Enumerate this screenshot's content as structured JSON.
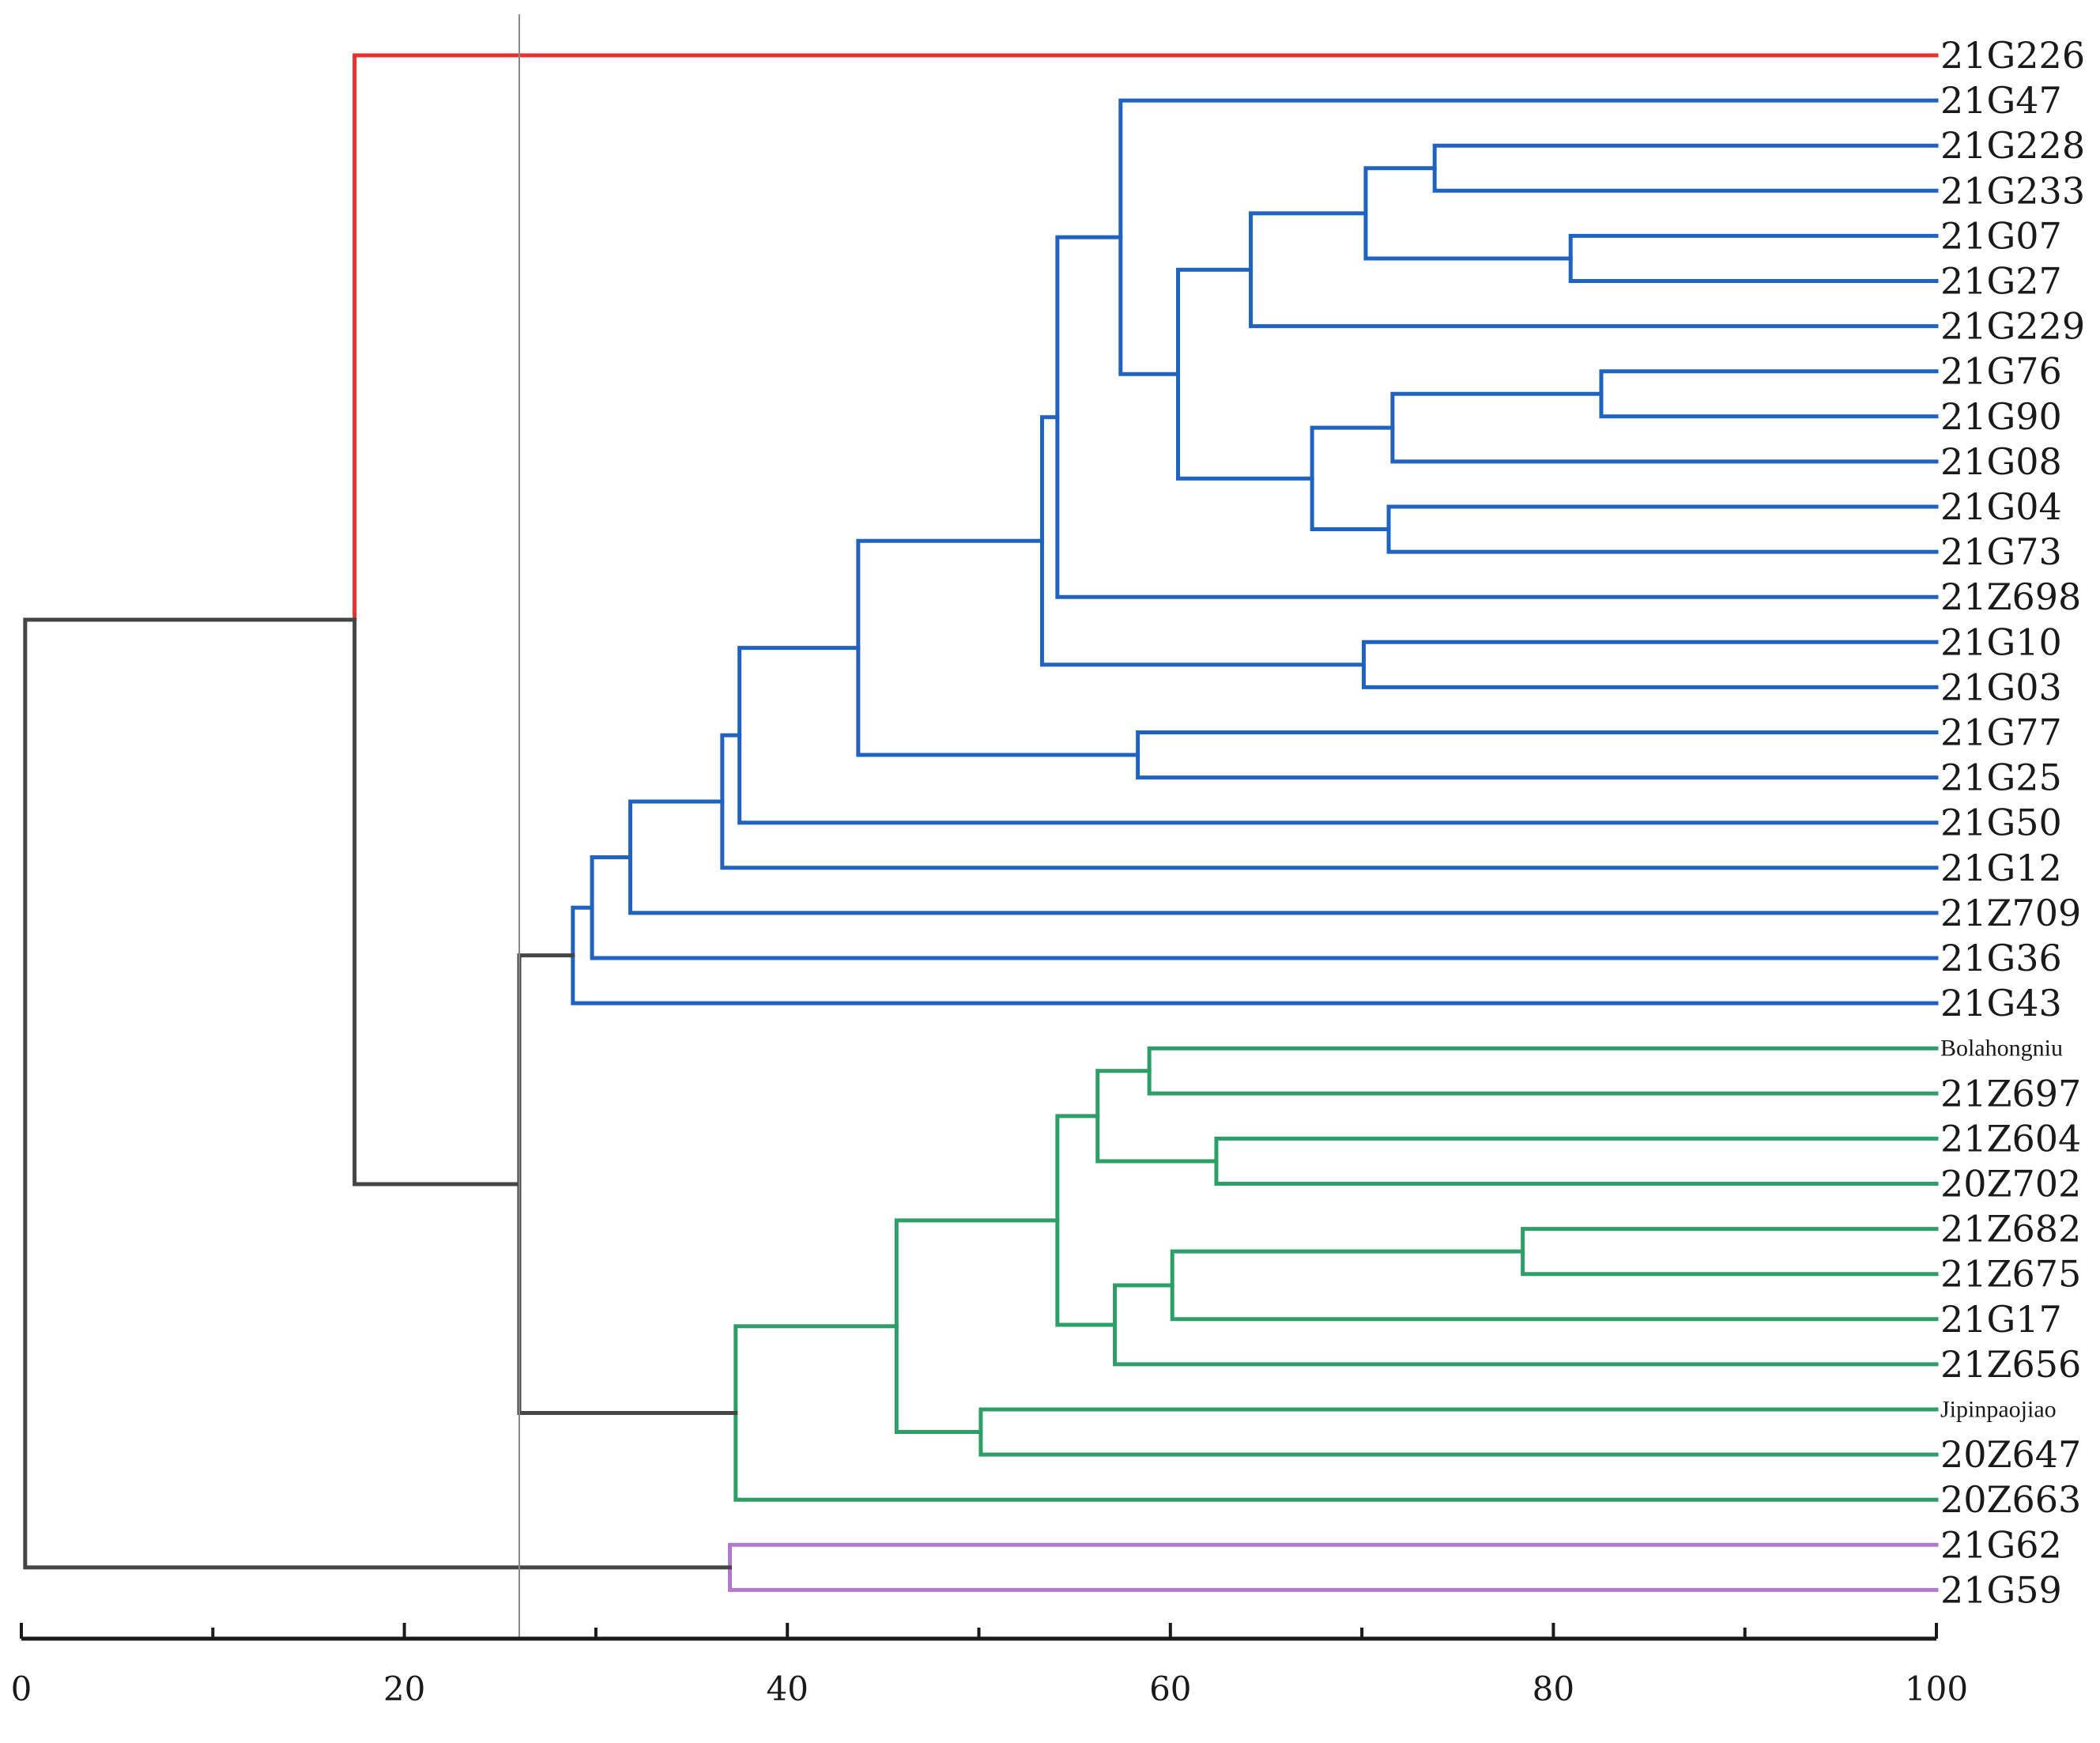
{
  "colors": {
    "red": "#e83030",
    "blue": "#1f62c0",
    "green": "#2e9e68",
    "purple": "#b478d2",
    "gray": "#454545",
    "cutoff_line": "#888888"
  },
  "chart_data": {
    "type": "dendrogram",
    "orientation": "horizontal",
    "x_range": [
      0,
      100
    ],
    "x_ticks_major": [
      0,
      20,
      40,
      60,
      80,
      100
    ],
    "x_ticks_minor": [
      10,
      30,
      50,
      70,
      90
    ],
    "x_tick_labels": [
      "0",
      "20",
      "40",
      "60",
      "80",
      "100"
    ],
    "cutoff_value": 26,
    "leaves": [
      "21G226",
      "21G47",
      "21G228",
      "21G233",
      "21G07",
      "21G27",
      "21G229",
      "21G76",
      "21G90",
      "21G08",
      "21G04",
      "21G73",
      "21Z698",
      "21G10",
      "21G03",
      "21G77",
      "21G25",
      "21G50",
      "21G12",
      "21Z709",
      "21G36",
      "21G43",
      "Bolahongniu",
      "21Z697",
      "21Z604",
      "20Z702",
      "21Z682",
      "21Z675",
      "21G17",
      "21Z656",
      "Jipinpaojiao",
      "20Z647",
      "20Z663",
      "21G62",
      "21G59"
    ],
    "small_labels": [
      "Bolahongniu",
      "Jipinpaojiao"
    ],
    "merges": [
      {
        "id": "b1",
        "a": "21G228",
        "b": "21G233",
        "value": 73.8,
        "color": "blue"
      },
      {
        "id": "b2",
        "a": "21G07",
        "b": "21G27",
        "value": 80.9,
        "color": "blue"
      },
      {
        "id": "b3",
        "a": "b1",
        "b": "b2",
        "value": 70.2,
        "color": "blue"
      },
      {
        "id": "b4",
        "a": "b3",
        "b": "21G229",
        "value": 64.2,
        "color": "blue"
      },
      {
        "id": "b5",
        "a": "21G76",
        "b": "21G90",
        "value": 82.5,
        "color": "blue"
      },
      {
        "id": "b6",
        "a": "b5",
        "b": "21G08",
        "value": 71.6,
        "color": "blue"
      },
      {
        "id": "b7",
        "a": "21G04",
        "b": "21G73",
        "value": 71.4,
        "color": "blue"
      },
      {
        "id": "b8",
        "a": "b6",
        "b": "b7",
        "value": 67.4,
        "color": "blue"
      },
      {
        "id": "b9",
        "a": "b4",
        "b": "b8",
        "value": 60.4,
        "color": "blue"
      },
      {
        "id": "b10",
        "a": "21G47",
        "b": "b9",
        "value": 57.4,
        "color": "blue"
      },
      {
        "id": "b11",
        "a": "b10",
        "b": "21Z698",
        "value": 54.1,
        "color": "blue"
      },
      {
        "id": "b12",
        "a": "21G10",
        "b": "21G03",
        "value": 70.1,
        "color": "blue"
      },
      {
        "id": "b13",
        "a": "b11",
        "b": "b12",
        "value": 53.3,
        "color": "blue"
      },
      {
        "id": "b14",
        "a": "21G77",
        "b": "21G25",
        "value": 58.3,
        "color": "blue"
      },
      {
        "id": "b15",
        "a": "b13",
        "b": "b14",
        "value": 43.7,
        "color": "blue"
      },
      {
        "id": "b16",
        "a": "b15",
        "b": "21G50",
        "value": 37.5,
        "color": "blue"
      },
      {
        "id": "b17",
        "a": "b16",
        "b": "21G12",
        "value": 36.6,
        "color": "blue"
      },
      {
        "id": "b18",
        "a": "b17",
        "b": "21Z709",
        "value": 31.8,
        "color": "blue"
      },
      {
        "id": "b19",
        "a": "b18",
        "b": "21G36",
        "value": 29.8,
        "color": "blue"
      },
      {
        "id": "b20",
        "a": "b19",
        "b": "21G43",
        "value": 28.8,
        "color": "blue"
      },
      {
        "id": "g1",
        "a": "Bolahongniu",
        "b": "21Z697",
        "value": 58.9,
        "color": "green"
      },
      {
        "id": "g2",
        "a": "21Z604",
        "b": "20Z702",
        "value": 62.4,
        "color": "green"
      },
      {
        "id": "g3",
        "a": "g1",
        "b": "g2",
        "value": 56.2,
        "color": "green"
      },
      {
        "id": "g4",
        "a": "21Z682",
        "b": "21Z675",
        "value": 78.4,
        "color": "green"
      },
      {
        "id": "g5",
        "a": "g4",
        "b": "21G17",
        "value": 60.1,
        "color": "green"
      },
      {
        "id": "g6",
        "a": "g5",
        "b": "21Z656",
        "value": 57.1,
        "color": "green"
      },
      {
        "id": "g7",
        "a": "g3",
        "b": "g6",
        "value": 54.1,
        "color": "green"
      },
      {
        "id": "g8",
        "a": "Jipinpaojiao",
        "b": "20Z647",
        "value": 50.1,
        "color": "green"
      },
      {
        "id": "g9",
        "a": "g7",
        "b": "g8",
        "value": 45.7,
        "color": "green"
      },
      {
        "id": "g10",
        "a": "g9",
        "b": "20Z663",
        "value": 37.3,
        "color": "green"
      },
      {
        "id": "k1",
        "a": "b20",
        "b": "g10",
        "value": 26.0,
        "color": "gray"
      },
      {
        "id": "k2",
        "a": "21G226",
        "b": "k1",
        "value": 17.4,
        "color": "gray",
        "upper_color": "red"
      },
      {
        "id": "p1",
        "a": "21G62",
        "b": "21G59",
        "value": 37.0,
        "color": "purple"
      },
      {
        "id": "k3",
        "a": "k2",
        "b": "p1",
        "value": 0.2,
        "color": "gray"
      }
    ]
  }
}
